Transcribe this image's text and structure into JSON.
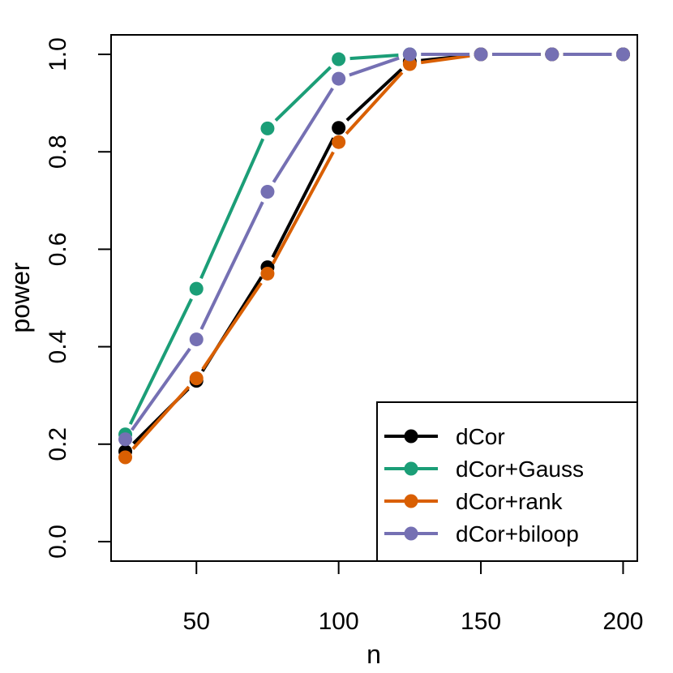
{
  "chart_data": {
    "type": "line",
    "title": "",
    "xlabel": "n",
    "ylabel": "power",
    "xlim": [
      20,
      205
    ],
    "ylim": [
      -0.04,
      1.04
    ],
    "x": [
      25,
      50,
      75,
      100,
      125,
      150,
      175,
      200
    ],
    "xticks": [
      50,
      100,
      150,
      200
    ],
    "xtick_labels": [
      "50",
      "100",
      "150",
      "200"
    ],
    "yticks": [
      0.0,
      0.2,
      0.4,
      0.6,
      0.8,
      1.0
    ],
    "ytick_labels": [
      "0.0",
      "0.2",
      "0.4",
      "0.6",
      "0.8",
      "1.0"
    ],
    "grid": false,
    "legend_position": "bottom-right",
    "series": [
      {
        "name": "dCor",
        "color": "#000000",
        "values": [
          0.185,
          0.33,
          0.563,
          0.849,
          0.985,
          1.0,
          1.0,
          1.0
        ]
      },
      {
        "name": "dCor+Gauss",
        "color": "#1b9e77",
        "values": [
          0.22,
          0.519,
          0.848,
          0.99,
          1.0,
          1.0,
          1.0,
          1.0
        ]
      },
      {
        "name": "dCor+rank",
        "color": "#d95f02",
        "values": [
          0.173,
          0.335,
          0.55,
          0.82,
          0.98,
          1.0,
          1.0,
          1.0
        ]
      },
      {
        "name": "dCor+biloop",
        "color": "#7570b3",
        "values": [
          0.21,
          0.415,
          0.718,
          0.95,
          1.0,
          1.0,
          1.0,
          1.0
        ]
      }
    ]
  }
}
